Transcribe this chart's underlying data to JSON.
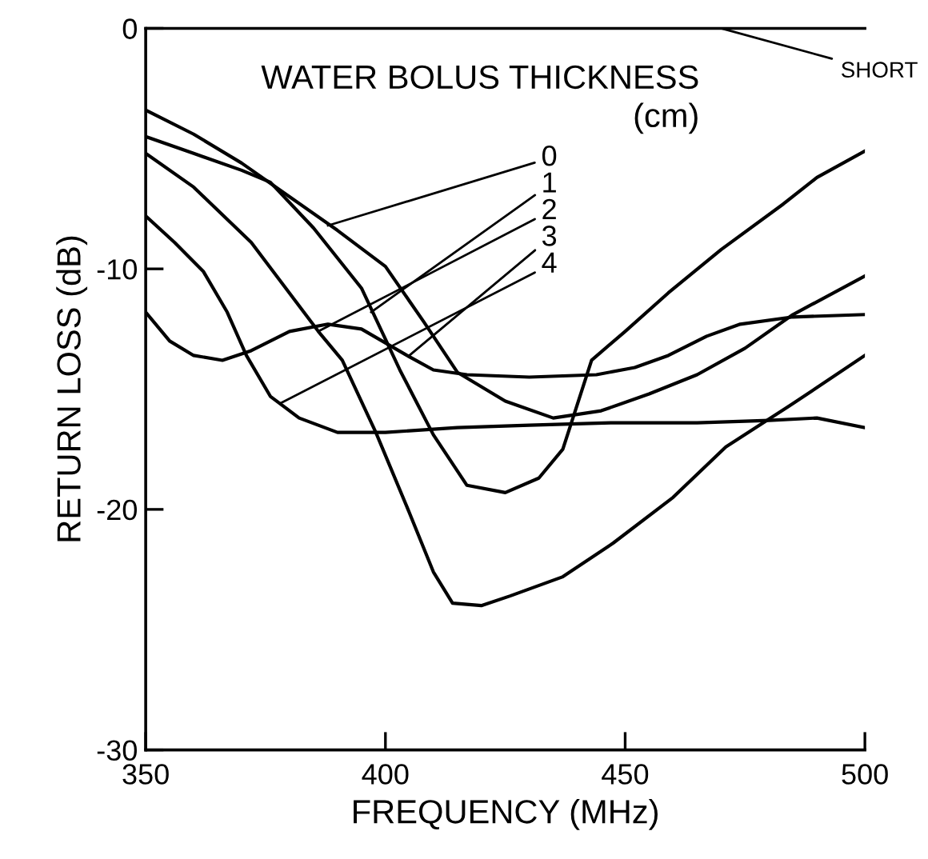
{
  "chart_data": {
    "type": "line",
    "xlabel": "FREQUENCY (MHz)",
    "ylabel": "RETURN LOSS (dB)",
    "xlim": [
      350,
      500
    ],
    "xticks": [
      350,
      400,
      450,
      500
    ],
    "ylim": [
      -30,
      0
    ],
    "yticks": [
      -30,
      -20,
      -10,
      0
    ],
    "grid": false,
    "marker": "none",
    "line_style": "solid",
    "series": [
      {
        "color": "#000000",
        "x": [
          350,
          360,
          370,
          380,
          390,
          400,
          408,
          415,
          425,
          435,
          445,
          455,
          465,
          475,
          485,
          500
        ],
        "values": [
          -3.4,
          -4.4,
          -5.6,
          -7.0,
          -8.4,
          -9.9,
          -12.2,
          -14.3,
          -15.5,
          -16.2,
          -15.9,
          -15.2,
          -14.4,
          -13.3,
          -11.9,
          -10.3
        ]
      },
      {
        "color": "#000000",
        "x": [
          350,
          360,
          370,
          376,
          385,
          395,
          403,
          410,
          417,
          425,
          432,
          437,
          443,
          450,
          459,
          470,
          483,
          490,
          500
        ],
        "values": [
          -4.5,
          -5.2,
          -5.9,
          -6.4,
          -8.3,
          -10.8,
          -14.2,
          -16.9,
          -19.0,
          -19.3,
          -18.7,
          -17.5,
          -13.8,
          -12.6,
          -11.0,
          -9.2,
          -7.3,
          -6.2,
          -5.1
        ]
      },
      {
        "color": "#000000",
        "x": [
          350,
          360,
          372,
          386,
          391,
          398,
          404.5,
          410,
          414,
          420,
          426,
          437,
          447.5,
          460,
          471,
          485,
          500
        ],
        "values": [
          -5.2,
          -6.6,
          -8.9,
          -12.6,
          -13.8,
          -16.8,
          -19.9,
          -22.6,
          -23.9,
          -24.0,
          -23.6,
          -22.8,
          -21.4,
          -19.5,
          -17.4,
          -15.6,
          -13.6
        ]
      },
      {
        "color": "#000000",
        "x": [
          350,
          355,
          360,
          366,
          372,
          380,
          388,
          395,
          404.5,
          410,
          417,
          430,
          444,
          452,
          459,
          467,
          474,
          485,
          500
        ],
        "values": [
          -11.8,
          -13.0,
          -13.6,
          -13.8,
          -13.4,
          -12.6,
          -12.3,
          -12.5,
          -13.6,
          -14.2,
          -14.4,
          -14.5,
          -14.4,
          -14.1,
          -13.6,
          -12.8,
          -12.3,
          -12.0,
          -11.9
        ]
      },
      {
        "color": "#000000",
        "x": [
          350,
          356,
          362,
          367,
          371,
          376,
          382,
          390,
          400,
          415,
          430,
          447,
          465,
          480,
          490,
          500
        ],
        "values": [
          -7.8,
          -8.9,
          -10.1,
          -11.8,
          -13.6,
          -15.3,
          -16.2,
          -16.8,
          -16.8,
          -16.6,
          -16.5,
          -16.4,
          -16.4,
          -16.3,
          -16.2,
          -16.6
        ]
      }
    ],
    "annotations": [
      "WATER BOLUS THICKNESS\n(cm)",
      "SHORT",
      {
        "text": "0",
        "x": 388,
        "y": -8.2
      },
      {
        "text": "1",
        "x": 397,
        "y": -11.8
      },
      {
        "text": "2",
        "x": 386,
        "y": -12.6
      },
      {
        "text": "3",
        "x": 405,
        "y": -13.6
      },
      {
        "text": "4",
        "x": 378,
        "y": -15.6
      }
    ]
  }
}
